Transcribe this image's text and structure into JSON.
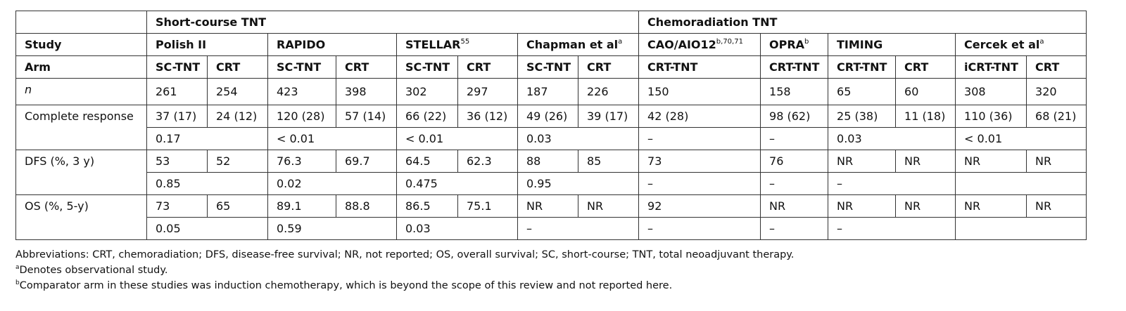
{
  "table": {
    "groups": [
      "Short-course TNT",
      "Chemoradiation TNT"
    ],
    "study_label": "Study",
    "studies": [
      {
        "name": "Polish II"
      },
      {
        "name": "RAPIDO"
      },
      {
        "name": "STELLAR",
        "sup": "55"
      },
      {
        "name": "Chapman et al",
        "sup": "a"
      },
      {
        "name": "CAO/AIO12",
        "sup": "b,70,71"
      },
      {
        "name": "OPRA",
        "sup": "b"
      },
      {
        "name": "TIMING"
      },
      {
        "name": "Cercek et al",
        "sup": "a"
      }
    ],
    "arm_label": "Arm",
    "arms": [
      "SC-TNT",
      "CRT",
      "SC-TNT",
      "CRT",
      "SC-TNT",
      "CRT",
      "SC-TNT",
      "CRT",
      "CRT-TNT",
      "CRT-TNT",
      "CRT-TNT",
      "CRT",
      "iCRT-TNT",
      "CRT"
    ],
    "rows": [
      {
        "label": "n",
        "values": [
          261,
          254,
          423,
          398,
          302,
          297,
          187,
          226,
          150,
          158,
          65,
          60,
          308,
          320
        ]
      },
      {
        "label": "Complete response",
        "values": [
          "37 (17)",
          "24 (12)",
          "120 (28)",
          "57 (14)",
          "66 (22)",
          "36 (12)",
          "49 (26)",
          "39 (17)",
          "42 (28)",
          "98 (62)",
          "25 (38)",
          "11 (18)",
          "110 (36)",
          "68 (21)"
        ],
        "p_values": [
          0.17,
          "< 0.01",
          "< 0.01",
          0.03,
          "–",
          "–",
          0.03,
          "< 0.01"
        ]
      },
      {
        "label": "DFS (%, 3 y)",
        "values": [
          53,
          52,
          76.3,
          69.7,
          64.5,
          62.3,
          88,
          85,
          73,
          76,
          "NR",
          "NR",
          "NR",
          "NR"
        ],
        "p_values": [
          0.85,
          0.02,
          0.475,
          0.95,
          "–",
          "–",
          "–"
        ]
      },
      {
        "label": "OS (%, 5-y)",
        "values": [
          73,
          65,
          89.1,
          88.8,
          86.5,
          75.1,
          "NR",
          "NR",
          92,
          "NR",
          "NR",
          "NR",
          "NR",
          "NR"
        ],
        "p_values": [
          0.05,
          0.59,
          0.03,
          "–",
          "–",
          "–",
          "–"
        ]
      }
    ]
  },
  "footnotes": [
    {
      "text": "Abbreviations: CRT, chemoradiation; DFS, disease-free survival; NR, not reported; OS, overall survival; SC, short-course; TNT, total neoadjuvant therapy."
    },
    {
      "sup": "a",
      "text": "Denotes observational study."
    },
    {
      "sup": "b",
      "text": "Comparator arm in these studies was induction chemotherapy, which is beyond the scope of this review and not reported here."
    }
  ]
}
